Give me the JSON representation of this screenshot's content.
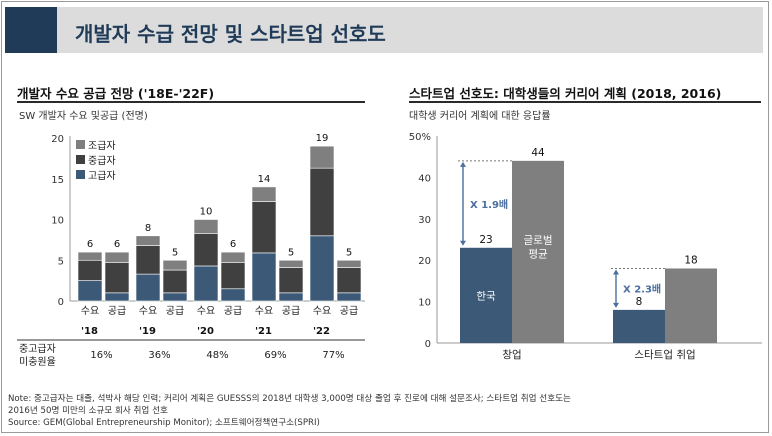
{
  "page_title": "개발자 수급 전망 및 스타트업 선호도",
  "chart_data": [
    {
      "type": "bar",
      "title": "개발자 수요 공급 전망 ('18E-'22F)",
      "subtitle": "SW 개발자 수요 및공급 (전명)",
      "ylim": [
        0,
        20
      ],
      "yticks": [
        0,
        5,
        10,
        15,
        20
      ],
      "bar_labels": [
        "수요",
        "공급"
      ],
      "years": [
        "'18",
        "'19",
        "'20",
        "'21",
        "'22"
      ],
      "series_names": [
        "조급자",
        "중급자",
        "고급자"
      ],
      "series_colors": [
        "#7f7f7f",
        "#404040",
        "#3c5a78"
      ],
      "groups": [
        {
          "year": "'18",
          "demand": {
            "total": 6,
            "segments": [
              2.5,
              2.5,
              1
            ]
          },
          "supply": {
            "total": 6,
            "segments": [
              1,
              3.7,
              1.3
            ]
          }
        },
        {
          "year": "'19",
          "demand": {
            "total": 8,
            "segments": [
              3.3,
              3.5,
              1.2
            ]
          },
          "supply": {
            "total": 5,
            "segments": [
              1,
              2.8,
              1.2
            ]
          }
        },
        {
          "year": "'20",
          "demand": {
            "total": 10,
            "segments": [
              4.3,
              4,
              1.7
            ]
          },
          "supply": {
            "total": 6,
            "segments": [
              1.5,
              3.2,
              1.3
            ]
          }
        },
        {
          "year": "'21",
          "demand": {
            "total": 14,
            "segments": [
              5.9,
              6.3,
              1.8
            ]
          },
          "supply": {
            "total": 5,
            "segments": [
              1,
              3.1,
              0.9
            ]
          }
        },
        {
          "year": "'22",
          "demand": {
            "total": 19,
            "segments": [
              8,
              8.3,
              2.7
            ]
          },
          "supply": {
            "total": 5,
            "segments": [
              1,
              3.1,
              0.9
            ]
          }
        }
      ],
      "ratio_label_line1": "중고급자",
      "ratio_label_line2": "미충원율",
      "ratios": [
        "16%",
        "36%",
        "48%",
        "69%",
        "77%"
      ]
    },
    {
      "type": "bar",
      "title": "스타트업 선호도: 대학생들의 커리어 계획 (2018, 2016)",
      "subtitle": "대학생 커리어 계획에 대한 응답률",
      "ylim": [
        0,
        50
      ],
      "ytick_labels": [
        "0",
        "10",
        "20",
        "30",
        "40",
        "50%"
      ],
      "categories": [
        "창업",
        "스타트업 취업"
      ],
      "series": [
        {
          "name": "한국",
          "values": [
            23,
            8
          ],
          "color": "#3c5a78"
        },
        {
          "name": "글로벌 평균",
          "name_line1": "글로벌",
          "name_line2": "평균",
          "values": [
            44,
            18
          ],
          "color": "#7f7f7f"
        }
      ],
      "multipliers": [
        "X 1.9배",
        "X 2.3배"
      ]
    }
  ],
  "notes": {
    "line1": "Note:  중고급자는 대졸, 석박사 해당 인력; 커리어 계획은 GUESSS의 2018년 대학생 3,000명 대상 졸업 후 진로에 대해 설문조사; 스타트업 취업 선호도는",
    "line2": "2016년 50명 미만의 소규모 회사 취업 선호",
    "line3": "Source: GEM(Global  Entrepreneurship  Monitor);  소프트웨어정책연구소(SPRI)"
  },
  "colors": {
    "title_accent": "#1f3b58",
    "title_bg": "#dcdcdc",
    "arrow": "#4a6fa0"
  }
}
